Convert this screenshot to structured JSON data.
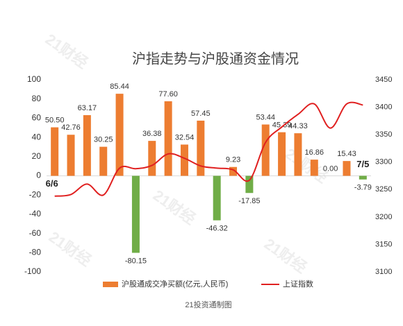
{
  "chart_data": {
    "type": "bar_line",
    "title": "沪指走势与沪股通资金情况",
    "footer": "21投资通制图",
    "watermark": "21财经",
    "annotations": [
      "6/6",
      "7/5"
    ],
    "categories": [
      null,
      null,
      null,
      null,
      null,
      null,
      null,
      null,
      null,
      null,
      null,
      null,
      null,
      null,
      null,
      null,
      null,
      null,
      null,
      null
    ],
    "series": [
      {
        "name": "沪股通成交净买额(亿元,人民币)",
        "type": "bar",
        "color": "#ed7d31",
        "negative_color": "#70ad47",
        "values": [
          50.5,
          42.76,
          63.17,
          30.25,
          85.44,
          -80.15,
          36.38,
          77.6,
          32.54,
          57.45,
          -46.32,
          9.23,
          -17.85,
          53.44,
          45.39,
          44.33,
          16.86,
          0,
          15.43,
          -3.79
        ],
        "value_labels": [
          "50.50",
          "42.76",
          "63.17",
          "30.25",
          "85.44",
          "-80.15",
          "36.38",
          "77.60",
          "32.54",
          "57.45",
          "-46.32",
          "9.23",
          "-17.85",
          "53.44",
          "45.39",
          "44.33",
          "16.86",
          "0.00",
          "15.43",
          "-3.79"
        ]
      },
      {
        "name": "上证指数",
        "type": "line",
        "axis": "y2",
        "color": "#e02020",
        "values": [
          3238,
          3241,
          3260,
          3240,
          3289,
          3288,
          3294,
          3315,
          3307,
          3293,
          3289,
          3286,
          3267,
          3336,
          3364,
          3387,
          3406,
          3362,
          3406,
          3404
        ]
      }
    ],
    "ylim": [
      -100,
      100
    ],
    "yticks": [
      -100,
      -80,
      -60,
      -40,
      -20,
      0,
      20,
      40,
      60,
      80,
      100
    ],
    "y2lim": [
      3100,
      3450
    ],
    "y2ticks": [
      3100,
      3150,
      3200,
      3250,
      3300,
      3350,
      3400,
      3450
    ]
  }
}
